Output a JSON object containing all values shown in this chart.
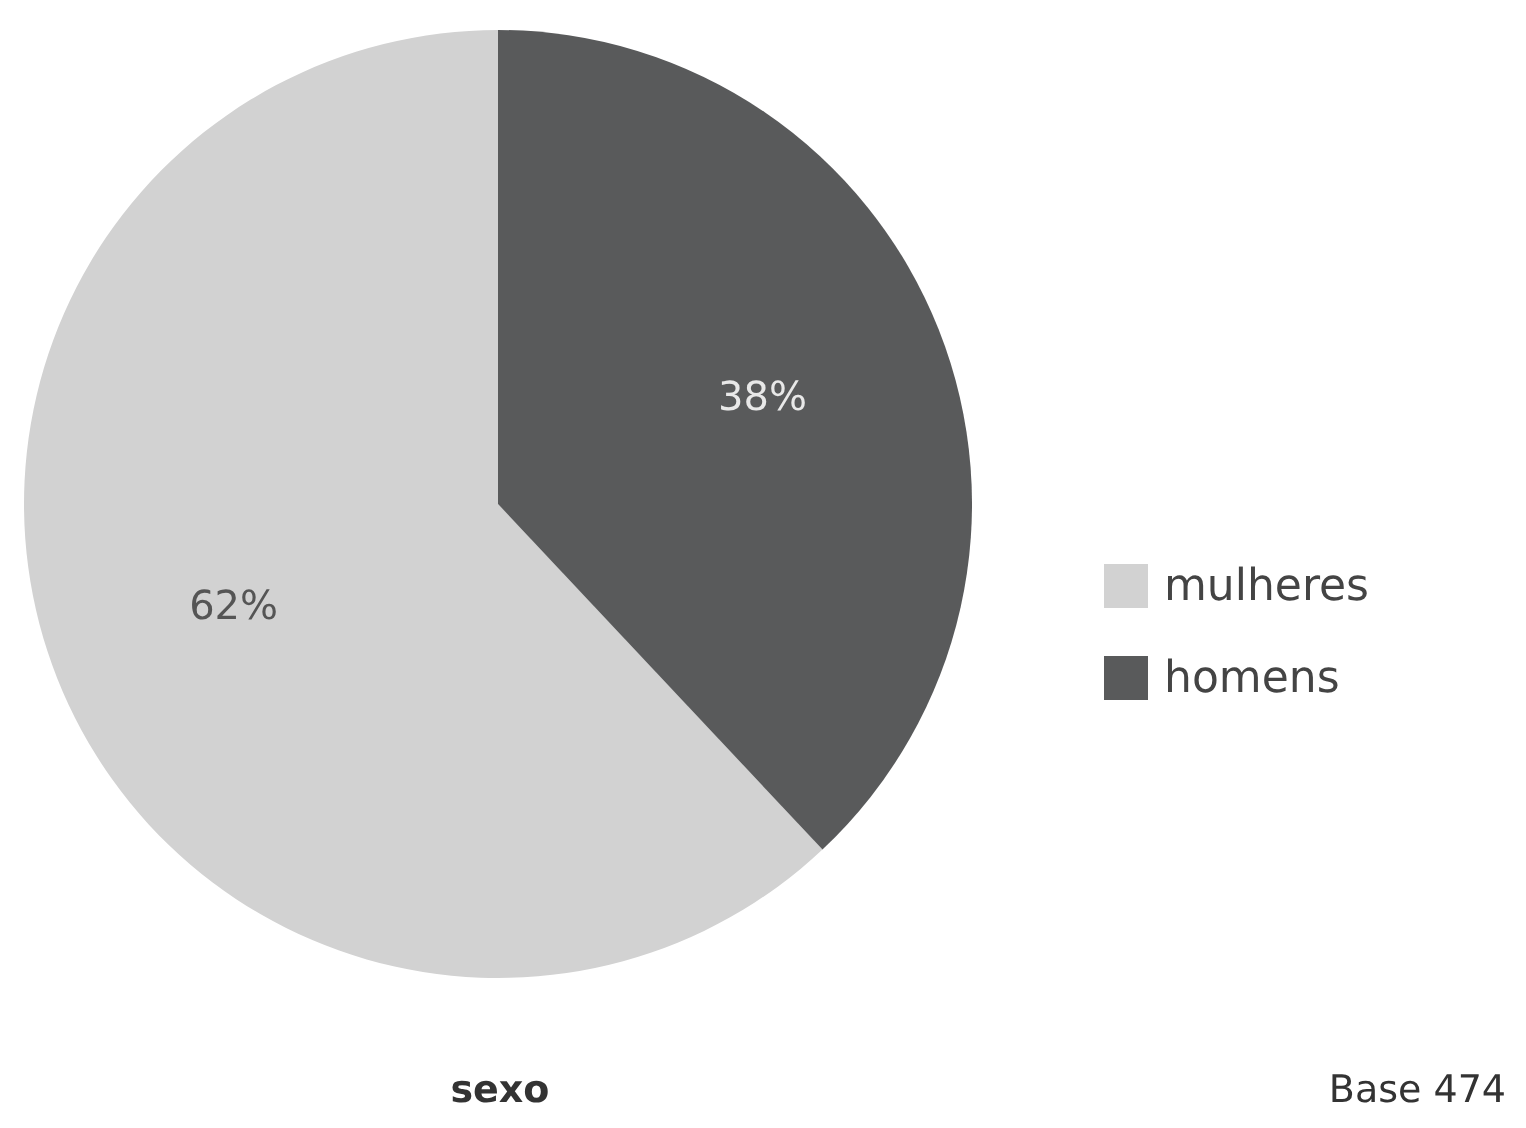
{
  "chart_data": {
    "type": "pie",
    "title": "sexo",
    "categories": [
      "mulheres",
      "homens"
    ],
    "values": [
      62,
      38
    ],
    "value_labels": [
      "62%",
      "38%"
    ],
    "colors": [
      "#d2d2d2",
      "#595a5b"
    ],
    "legend": "right",
    "annotations": [
      "Base 474"
    ]
  }
}
